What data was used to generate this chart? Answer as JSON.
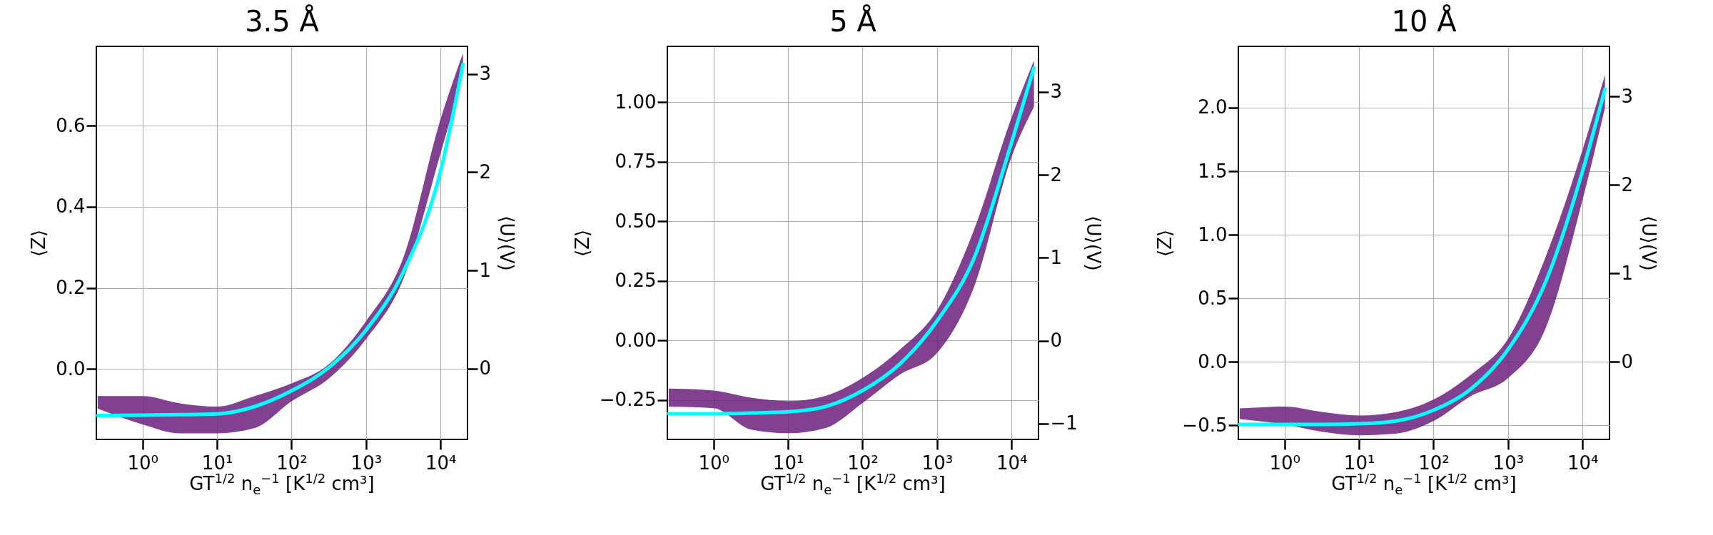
{
  "chart_data": [
    {
      "type": "line",
      "title": "3.5 Å",
      "xlabel": "GT$^{1/2}$ n$_{e}$$^{−1}$ [K$^{1/2}$ cm³]",
      "ylabel": "⟨Z⟩",
      "y2label": "⟨U⟩(V)",
      "log": "x",
      "grid": true,
      "x": [
        0.25,
        1,
        3.2,
        10,
        32,
        100,
        320,
        1000,
        3200,
        10000,
        20000
      ],
      "xlim": [
        0.24,
        23000
      ],
      "xticks": [
        {
          "value": 1,
          "label": "10⁰"
        },
        {
          "value": 10,
          "label": "10¹"
        },
        {
          "value": 100,
          "label": "10²"
        },
        {
          "value": 1000,
          "label": "10³"
        },
        {
          "value": 10000,
          "label": "10⁴"
        }
      ],
      "ylim": [
        -0.174,
        0.796
      ],
      "yticks": [
        {
          "value": 0,
          "label": "0.0"
        },
        0.2,
        0.4,
        0.6
      ],
      "y2lim": [
        -0.72,
        3.28
      ],
      "y2ticks": [
        0,
        1,
        2,
        3
      ],
      "series": [
        {
          "color": "#00ffff",
          "values": [
            -0.115,
            -0.114,
            -0.113,
            -0.111,
            -0.093,
            -0.054,
            0.004,
            0.096,
            0.241,
            0.488,
            0.752
          ],
          "lower": [
            -0.098,
            -0.137,
            -0.159,
            -0.159,
            -0.146,
            -0.08,
            -0.023,
            0.074,
            0.224,
            0.532,
            0.726
          ],
          "upper": [
            -0.067,
            -0.067,
            -0.085,
            -0.093,
            -0.067,
            -0.036,
            0.012,
            0.118,
            0.277,
            0.616,
            0.779
          ]
        }
      ]
    },
    {
      "type": "line",
      "title": "5 Å",
      "xlabel": "GT$^{1/2}$ n$_{e}$$^{−1}$ [K$^{1/2}$ cm³]",
      "ylabel": "⟨Z⟩",
      "y2label": "⟨U⟩(V)",
      "log": "x",
      "grid": true,
      "x": [
        0.25,
        1,
        3.2,
        10,
        32,
        100,
        320,
        1000,
        3200,
        10000,
        20000
      ],
      "xlim": [
        0.24,
        23000
      ],
      "xticks": [
        {
          "value": 1,
          "label": "10⁰"
        },
        {
          "value": 10,
          "label": "10¹"
        },
        {
          "value": 100,
          "label": "10²"
        },
        {
          "value": 1000,
          "label": "10³"
        },
        {
          "value": 10000,
          "label": "10⁴"
        }
      ],
      "ylim": [
        -0.415,
        1.235
      ],
      "yticks": [
        {
          "value": -0.25,
          "label": "−0.25"
        },
        {
          "value": 0,
          "label": "0.00"
        },
        0.25,
        {
          "value": 0.5,
          "label": "0.50"
        },
        0.75,
        {
          "value": 1,
          "label": "1.00"
        }
      ],
      "y2lim": [
        -1.19,
        3.55
      ],
      "y2ticks": [
        {
          "value": -1,
          "label": "−1"
        },
        0,
        1,
        2,
        3
      ],
      "series": [
        {
          "color": "#00ffff",
          "values": [
            -0.307,
            -0.307,
            -0.304,
            -0.299,
            -0.277,
            -0.21,
            -0.097,
            0.082,
            0.352,
            0.831,
            1.145
          ],
          "lower": [
            -0.277,
            -0.284,
            -0.374,
            -0.389,
            -0.367,
            -0.262,
            -0.142,
            -0.052,
            0.232,
            0.771,
            0.981
          ],
          "upper": [
            -0.202,
            -0.21,
            -0.24,
            -0.254,
            -0.232,
            -0.157,
            -0.037,
            0.127,
            0.472,
            0.936,
            1.175
          ]
        }
      ]
    },
    {
      "type": "line",
      "title": "10 Å",
      "xlabel": "GT$^{1/2}$ n$_{e}$$^{−1}$ [K$^{1/2}$ cm³]",
      "ylabel": "⟨Z⟩",
      "y2label": "⟨U⟩(V)",
      "log": "x",
      "grid": true,
      "x": [
        0.25,
        1,
        3.2,
        10,
        32,
        100,
        320,
        1000,
        3200,
        10000,
        20000
      ],
      "xlim": [
        0.24,
        23000
      ],
      "xticks": [
        {
          "value": 1,
          "label": "10⁰"
        },
        {
          "value": 10,
          "label": "10¹"
        },
        {
          "value": 100,
          "label": "10²"
        },
        {
          "value": 1000,
          "label": "10³"
        },
        {
          "value": 10000,
          "label": "10⁴"
        }
      ],
      "ylim": [
        -0.612,
        2.483
      ],
      "yticks": [
        {
          "value": -0.5,
          "label": "−0.5"
        },
        {
          "value": 0,
          "label": "0.0"
        },
        0.5,
        {
          "value": 1,
          "label": "1.0"
        },
        1.5,
        {
          "value": 2,
          "label": "2.0"
        }
      ],
      "y2lim": [
        -0.879,
        3.565
      ],
      "y2ticks": [
        0,
        1,
        2,
        3
      ],
      "series": [
        {
          "color": "#00ffff",
          "values": [
            -0.494,
            -0.494,
            -0.494,
            -0.489,
            -0.466,
            -0.382,
            -0.213,
            0.096,
            0.629,
            1.5,
            2.146
          ],
          "lower": [
            -0.452,
            -0.494,
            -0.551,
            -0.579,
            -0.565,
            -0.466,
            -0.27,
            -0.129,
            0.264,
            1.275,
            2.0
          ],
          "upper": [
            -0.368,
            -0.354,
            -0.396,
            -0.424,
            -0.396,
            -0.298,
            -0.101,
            0.18,
            0.826,
            1.669,
            2.258
          ]
        }
      ]
    }
  ]
}
